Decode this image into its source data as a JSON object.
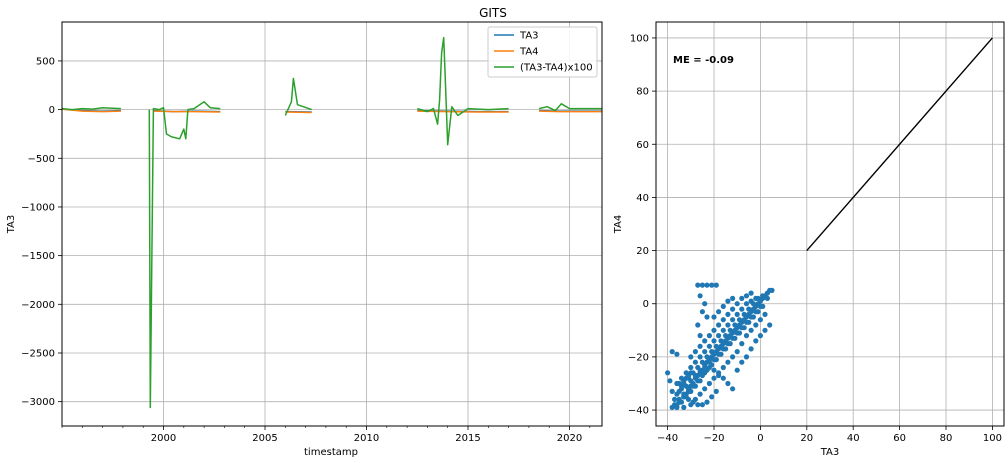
{
  "chart_data": [
    {
      "type": "line",
      "title": "GITS",
      "xlabel": "timestamp",
      "ylabel": "TA3",
      "xlim": [
        1995.0,
        2021.6
      ],
      "ylim": [
        -3250,
        900
      ],
      "grid": true,
      "legend_position": "top-right",
      "x_tick_labels": [
        "2000",
        "2005",
        "2010",
        "2015",
        "2020"
      ],
      "y_tick_labels": [
        "500",
        "0",
        "−500",
        "−1000",
        "−1500",
        "−2000",
        "−2500",
        "−3000"
      ],
      "x_ticks": [
        2000,
        2005,
        2010,
        2015,
        2020
      ],
      "y_ticks": [
        500,
        0,
        -500,
        -1000,
        -1500,
        -2000,
        -2500,
        -3000
      ],
      "series": [
        {
          "name": "TA3",
          "color": "#1f77b4",
          "segments": [
            [
              [
                1995.0,
                5
              ],
              [
                1996.0,
                -10
              ],
              [
                1997.0,
                -15
              ],
              [
                1997.9,
                -10
              ]
            ],
            [
              [
                1999.5,
                -10
              ],
              [
                2000.5,
                -20
              ],
              [
                2001.5,
                -15
              ],
              [
                2002.8,
                -20
              ]
            ],
            [
              [
                2006.0,
                -20
              ],
              [
                2007.3,
                -25
              ]
            ],
            [
              [
                2012.5,
                -10
              ],
              [
                2014.0,
                -15
              ],
              [
                2015.5,
                -20
              ],
              [
                2017.0,
                -20
              ]
            ],
            [
              [
                2018.5,
                -10
              ],
              [
                2019.5,
                -15
              ],
              [
                2021.6,
                -15
              ]
            ]
          ]
        },
        {
          "name": "TA4",
          "color": "#ff7f0e",
          "segments": [
            [
              [
                1995.0,
                5
              ],
              [
                1996.0,
                -15
              ],
              [
                1997.0,
                -20
              ],
              [
                1997.9,
                -15
              ]
            ],
            [
              [
                1999.5,
                -15
              ],
              [
                2000.5,
                -20
              ],
              [
                2001.5,
                -20
              ],
              [
                2002.8,
                -25
              ]
            ],
            [
              [
                2006.0,
                -25
              ],
              [
                2007.3,
                -30
              ]
            ],
            [
              [
                2012.5,
                -15
              ],
              [
                2014.0,
                -20
              ],
              [
                2015.5,
                -25
              ],
              [
                2017.0,
                -25
              ]
            ],
            [
              [
                2018.5,
                -15
              ],
              [
                2019.5,
                -20
              ],
              [
                2021.6,
                -20
              ]
            ]
          ]
        },
        {
          "name": "(TA3-TA4)x100",
          "color": "#2ca02c",
          "segments": [
            [
              [
                1995.0,
                10
              ],
              [
                1995.5,
                0
              ],
              [
                1996.0,
                10
              ],
              [
                1996.5,
                5
              ],
              [
                1997.0,
                20
              ],
              [
                1997.9,
                10
              ]
            ],
            [
              [
                1999.3,
                0
              ],
              [
                1999.35,
                -3060
              ],
              [
                1999.5,
                10
              ],
              [
                1999.8,
                0
              ],
              [
                2000.0,
                20
              ],
              [
                2000.15,
                -250
              ],
              [
                2000.4,
                -280
              ],
              [
                2000.8,
                -300
              ],
              [
                2001.0,
                -200
              ],
              [
                2001.1,
                -300
              ],
              [
                2001.2,
                0
              ],
              [
                2001.5,
                10
              ],
              [
                2002.0,
                80
              ],
              [
                2002.3,
                20
              ],
              [
                2002.8,
                10
              ]
            ],
            [
              [
                2006.0,
                -60
              ],
              [
                2006.3,
                80
              ],
              [
                2006.4,
                320
              ],
              [
                2006.6,
                50
              ],
              [
                2007.3,
                0
              ]
            ],
            [
              [
                2012.5,
                10
              ],
              [
                2013.0,
                -20
              ],
              [
                2013.3,
                10
              ],
              [
                2013.5,
                -150
              ],
              [
                2013.6,
                100
              ],
              [
                2013.7,
                580
              ],
              [
                2013.8,
                740
              ],
              [
                2013.9,
                200
              ],
              [
                2014.0,
                -360
              ],
              [
                2014.2,
                30
              ],
              [
                2014.5,
                -60
              ],
              [
                2015.0,
                10
              ],
              [
                2016.0,
                0
              ],
              [
                2017.0,
                10
              ]
            ],
            [
              [
                2018.5,
                10
              ],
              [
                2018.9,
                30
              ],
              [
                2019.3,
                -10
              ],
              [
                2019.6,
                60
              ],
              [
                2020.0,
                10
              ],
              [
                2021.6,
                10
              ]
            ]
          ]
        }
      ]
    },
    {
      "type": "scatter",
      "xlabel": "TA3",
      "ylabel": "TA4",
      "xlim": [
        -45,
        105
      ],
      "ylim": [
        -46,
        106
      ],
      "grid": true,
      "x_ticks": [
        -40,
        -20,
        0,
        20,
        40,
        60,
        80,
        100
      ],
      "y_ticks": [
        -40,
        -20,
        0,
        20,
        40,
        60,
        80,
        100
      ],
      "x_tick_labels": [
        "−40",
        "−20",
        "0",
        "20",
        "40",
        "60",
        "80",
        "100"
      ],
      "y_tick_labels": [
        "−40",
        "−20",
        "0",
        "20",
        "40",
        "60",
        "80",
        "100"
      ],
      "annotation": "ME = -0.09",
      "point_color": "#1f77b4",
      "reference_line": [
        [
          20,
          20
        ],
        [
          100,
          100
        ]
      ],
      "points": [
        [
          -38,
          -39
        ],
        [
          -36,
          -38
        ],
        [
          -35,
          -36
        ],
        [
          -34,
          -37
        ],
        [
          -33,
          -35
        ],
        [
          -32,
          -34
        ],
        [
          -31,
          -32
        ],
        [
          -30,
          -31
        ],
        [
          -29,
          -30
        ],
        [
          -28,
          -28
        ],
        [
          -27,
          -27
        ],
        [
          -26,
          -26
        ],
        [
          -25,
          -25
        ],
        [
          -24,
          -23
        ],
        [
          -23,
          -22
        ],
        [
          -22,
          -21
        ],
        [
          -21,
          -20
        ],
        [
          -20,
          -19
        ],
        [
          -19,
          -18
        ],
        [
          -18,
          -17
        ],
        [
          -17,
          -16
        ],
        [
          -16,
          -15
        ],
        [
          -15,
          -14
        ],
        [
          -14,
          -13
        ],
        [
          -13,
          -12
        ],
        [
          -12,
          -11
        ],
        [
          -11,
          -10
        ],
        [
          -10,
          -9
        ],
        [
          -9,
          -8
        ],
        [
          -8,
          -7
        ],
        [
          -7,
          -6
        ],
        [
          -6,
          -5
        ],
        [
          -5,
          -4
        ],
        [
          -4,
          -3
        ],
        [
          -3,
          -2
        ],
        [
          -2,
          -1
        ],
        [
          -1,
          0
        ],
        [
          0,
          1
        ],
        [
          1,
          2
        ],
        [
          2,
          3
        ],
        [
          3,
          4
        ],
        [
          4,
          5
        ],
        [
          -38,
          -33
        ],
        [
          -36,
          -30
        ],
        [
          -34,
          -28
        ],
        [
          -32,
          -26
        ],
        [
          -30,
          -24
        ],
        [
          -28,
          -22
        ],
        [
          -26,
          -20
        ],
        [
          -24,
          -18
        ],
        [
          -22,
          -16
        ],
        [
          -20,
          -14
        ],
        [
          -18,
          -12
        ],
        [
          -16,
          -10
        ],
        [
          -14,
          -8
        ],
        [
          -12,
          -6
        ],
        [
          -10,
          -4
        ],
        [
          -8,
          -2
        ],
        [
          -6,
          0
        ],
        [
          -4,
          1
        ],
        [
          -2,
          2
        ],
        [
          -36,
          -39
        ],
        [
          -33,
          -39
        ],
        [
          -30,
          -38
        ],
        [
          -28,
          -36
        ],
        [
          -26,
          -34
        ],
        [
          -24,
          -32
        ],
        [
          -22,
          -30
        ],
        [
          -20,
          -28
        ],
        [
          -18,
          -26
        ],
        [
          -16,
          -24
        ],
        [
          -14,
          -22
        ],
        [
          -12,
          -20
        ],
        [
          -10,
          -18
        ],
        [
          -8,
          -15
        ],
        [
          -6,
          -12
        ],
        [
          -4,
          -10
        ],
        [
          -2,
          -8
        ],
        [
          0,
          -6
        ],
        [
          2,
          -4
        ],
        [
          -27,
          7
        ],
        [
          -25,
          7
        ],
        [
          -23,
          7
        ],
        [
          -21,
          7
        ],
        [
          -19,
          7
        ],
        [
          -26,
          3
        ],
        [
          -24,
          0
        ],
        [
          -25,
          -3
        ],
        [
          -23,
          -5
        ],
        [
          -27,
          -8
        ],
        [
          -26,
          -12
        ],
        [
          -38,
          -18
        ],
        [
          -36,
          -19
        ],
        [
          -40,
          -26
        ],
        [
          -39,
          -29
        ],
        [
          -33,
          -34
        ],
        [
          -31,
          -36
        ],
        [
          -29,
          -37
        ],
        [
          -27,
          -38
        ],
        [
          -25,
          -38
        ],
        [
          -23,
          -37
        ],
        [
          -21,
          -35
        ],
        [
          -19,
          -33
        ],
        [
          -12,
          -32
        ],
        [
          -14,
          -30
        ],
        [
          -16,
          -28
        ],
        [
          -18,
          -27
        ],
        [
          -20,
          -25
        ],
        [
          -22,
          -24
        ],
        [
          -24,
          -26
        ],
        [
          -26,
          -29
        ],
        [
          -28,
          -31
        ],
        [
          -30,
          -33
        ],
        [
          -32,
          -35
        ],
        [
          -10,
          -25
        ],
        [
          -8,
          -22
        ],
        [
          -6,
          -20
        ],
        [
          -4,
          -17
        ],
        [
          -2,
          -14
        ],
        [
          0,
          -12
        ],
        [
          2,
          -10
        ],
        [
          4,
          -8
        ],
        [
          5,
          5
        ],
        [
          3,
          2
        ],
        [
          1,
          -1
        ],
        [
          -1,
          -3
        ],
        [
          -3,
          -5
        ],
        [
          -5,
          -7
        ],
        [
          -7,
          -9
        ],
        [
          -9,
          -11
        ],
        [
          -11,
          -13
        ],
        [
          -13,
          -15
        ],
        [
          -15,
          -17
        ],
        [
          -17,
          -19
        ],
        [
          -19,
          -21
        ],
        [
          -21,
          -23
        ],
        [
          -23,
          -25
        ],
        [
          -25,
          -27
        ],
        [
          -27,
          -29
        ],
        [
          -29,
          -31
        ],
        [
          -31,
          -33
        ],
        [
          -33,
          -35
        ],
        [
          -35,
          -37
        ],
        [
          -37,
          -38
        ],
        [
          -30,
          -20
        ],
        [
          -28,
          -18
        ],
        [
          -26,
          -16
        ],
        [
          -24,
          -14
        ],
        [
          -22,
          -12
        ],
        [
          -20,
          -10
        ],
        [
          -18,
          -8
        ],
        [
          -16,
          -6
        ],
        [
          -14,
          -4
        ],
        [
          -12,
          -2
        ],
        [
          -10,
          0
        ],
        [
          -8,
          2
        ],
        [
          -6,
          3
        ],
        [
          -4,
          4
        ],
        [
          -20,
          -5
        ],
        [
          -18,
          -3
        ],
        [
          -16,
          -1
        ],
        [
          -14,
          1
        ],
        [
          -12,
          2
        ],
        [
          -35,
          -30
        ],
        [
          -34,
          -32
        ],
        [
          -33,
          -29
        ],
        [
          -32,
          -31
        ],
        [
          -31,
          -28
        ],
        [
          -30,
          -29
        ],
        [
          -29,
          -26
        ],
        [
          -28,
          -27
        ],
        [
          -27,
          -24
        ],
        [
          -26,
          -25
        ],
        [
          -25,
          -22
        ],
        [
          -24,
          -24
        ],
        [
          -23,
          -20
        ],
        [
          -22,
          -22
        ],
        [
          -21,
          -18
        ],
        [
          -20,
          -21
        ],
        [
          -19,
          -16
        ],
        [
          -18,
          -19
        ],
        [
          -17,
          -14
        ],
        [
          -16,
          -17
        ],
        [
          -15,
          -12
        ],
        [
          -14,
          -15
        ],
        [
          -13,
          -10
        ],
        [
          -12,
          -13
        ],
        [
          -11,
          -8
        ],
        [
          -10,
          -11
        ],
        [
          -9,
          -6
        ],
        [
          -8,
          -9
        ],
        [
          -7,
          -4
        ],
        [
          -6,
          -7
        ],
        [
          -5,
          -2
        ],
        [
          -4,
          -5
        ],
        [
          -3,
          0
        ],
        [
          -2,
          -3
        ],
        [
          -1,
          2
        ],
        [
          0,
          -1
        ],
        [
          1,
          3
        ],
        [
          -37,
          -36
        ],
        [
          -36,
          -34
        ],
        [
          -35,
          -33
        ],
        [
          -34,
          -31
        ],
        [
          -33,
          -30
        ],
        [
          -32,
          -28
        ],
        [
          -31,
          -27
        ],
        [
          -30,
          -26
        ]
      ]
    }
  ]
}
